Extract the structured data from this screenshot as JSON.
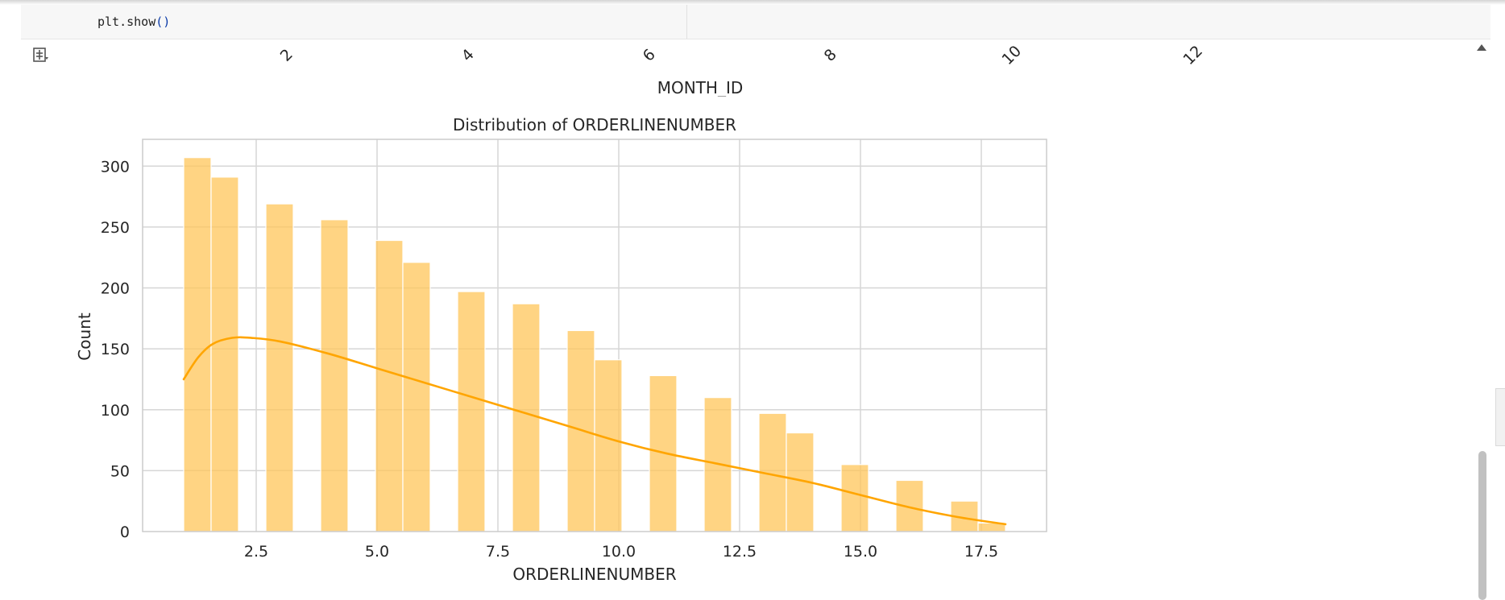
{
  "code": {
    "line_visible": "plt.show()",
    "line_visible_prefix": "plt.show",
    "line_visible_parens": "()"
  },
  "upper_axis": {
    "tick_labels": [
      "2",
      "4",
      "6",
      "8",
      "10",
      "12"
    ],
    "xlabel": "MONTH_ID"
  },
  "colors": {
    "bar_fill": "#FFC65A",
    "bar_fill_opacity": 0.75,
    "kde_line": "#FFA500",
    "grid": "#d6d6d6"
  },
  "icons": {
    "output": "output-toggle-icon",
    "scroll_up": "scroll-up-arrow-icon"
  },
  "chart_data": {
    "type": "bar",
    "title": "Distribution of ORDERLINENUMBER",
    "xlabel": "ORDERLINENUMBER",
    "ylabel": "Count",
    "xlim": [
      0.15,
      18.85
    ],
    "ylim": [
      0,
      322
    ],
    "xticks": [
      2.5,
      5.0,
      7.5,
      10.0,
      12.5,
      15.0,
      17.5
    ],
    "xtick_labels": [
      "2.5",
      "5.0",
      "7.5",
      "10.0",
      "12.5",
      "15.0",
      "17.5"
    ],
    "yticks": [
      0,
      50,
      100,
      150,
      200,
      250,
      300
    ],
    "ytick_labels": [
      "0",
      "50",
      "100",
      "150",
      "200",
      "250",
      "300"
    ],
    "grid": true,
    "bin_width": 0.5667,
    "bins": [
      {
        "start": 1.0,
        "count": 307
      },
      {
        "start": 1.5667,
        "count": 291
      },
      {
        "start": 2.7,
        "count": 269
      },
      {
        "start": 3.8333,
        "count": 256
      },
      {
        "start": 4.9667,
        "count": 239
      },
      {
        "start": 5.5333,
        "count": 221
      },
      {
        "start": 6.6667,
        "count": 197
      },
      {
        "start": 7.8,
        "count": 187
      },
      {
        "start": 8.9333,
        "count": 165
      },
      {
        "start": 9.5,
        "count": 141
      },
      {
        "start": 10.6333,
        "count": 128
      },
      {
        "start": 11.7667,
        "count": 110
      },
      {
        "start": 12.9,
        "count": 97
      },
      {
        "start": 13.4667,
        "count": 81
      },
      {
        "start": 14.6,
        "count": 55
      },
      {
        "start": 15.7333,
        "count": 42
      },
      {
        "start": 16.8667,
        "count": 25
      },
      {
        "start": 17.4333,
        "count": 7
      }
    ],
    "kde": {
      "x": [
        1.0,
        1.3,
        1.6,
        2.0,
        2.4,
        3.0,
        4.0,
        5.0,
        6.0,
        7.0,
        8.0,
        9.0,
        10.0,
        11.0,
        12.0,
        13.0,
        14.0,
        15.0,
        16.0,
        17.0,
        18.0
      ],
      "y": [
        125,
        143,
        154,
        159,
        159,
        156,
        146,
        134,
        122,
        110,
        98,
        86,
        74,
        64,
        56,
        48,
        40,
        30,
        20,
        12,
        6
      ]
    }
  }
}
